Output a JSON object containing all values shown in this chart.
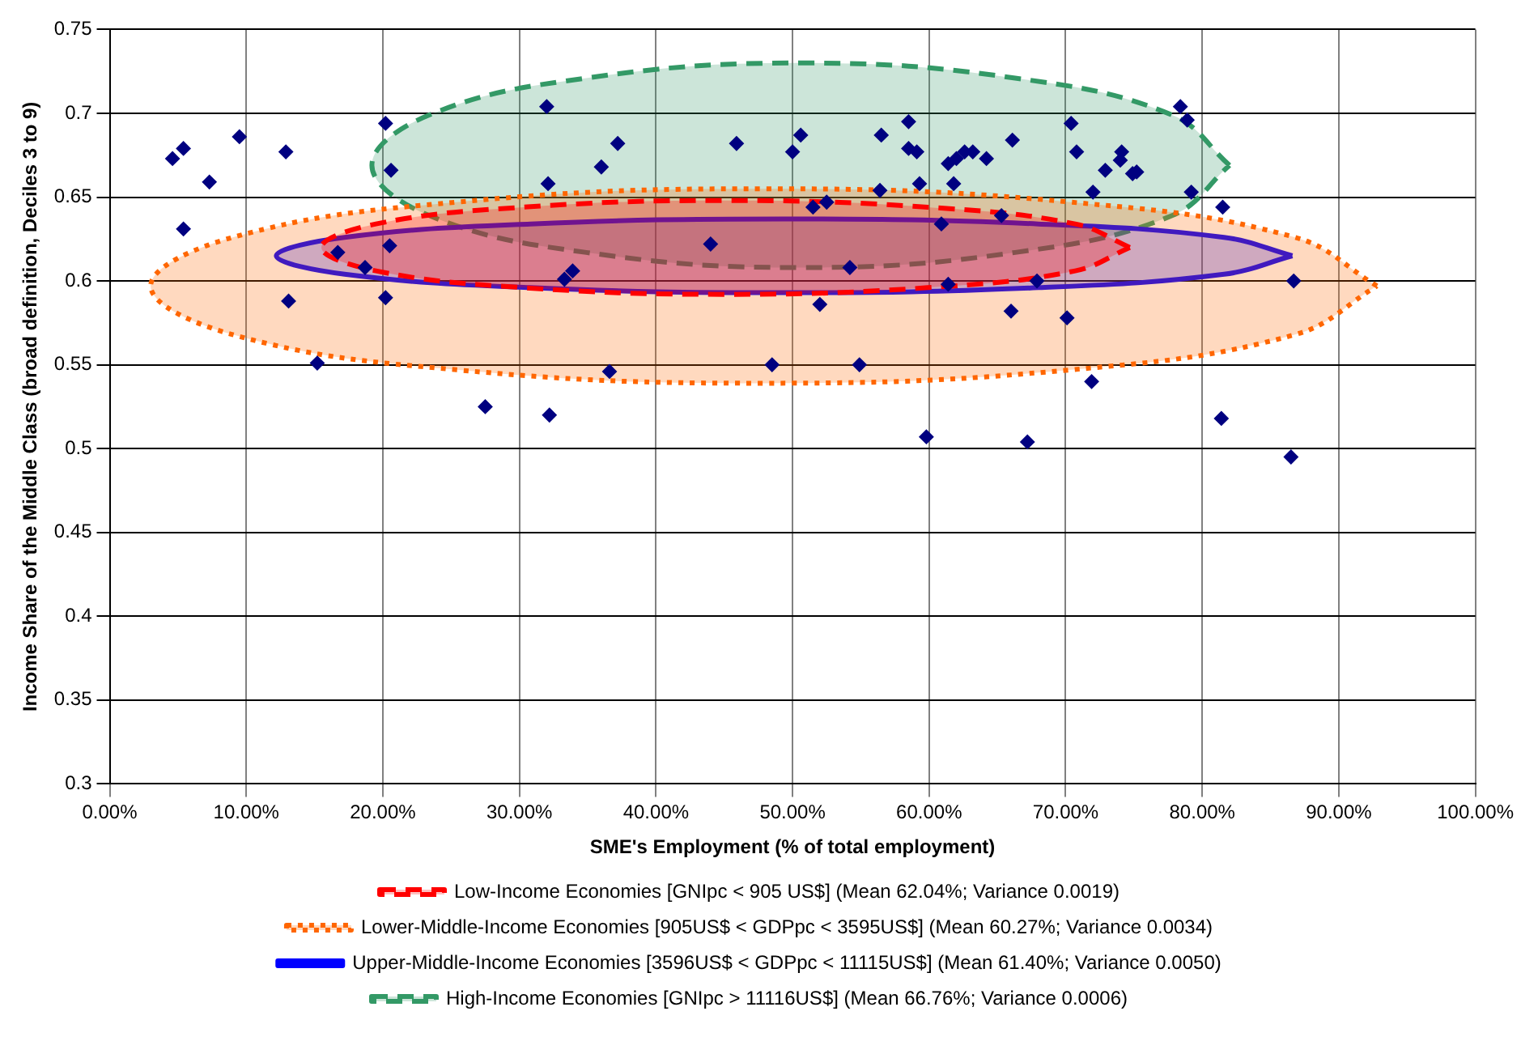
{
  "chart_data": {
    "type": "scatter",
    "xlabel": "SME's Employment (% of total employment)",
    "ylabel": "Income Share of the Middle Class (broad definition, Deciles 3 to 9)",
    "xlim": [
      0,
      100
    ],
    "ylim": [
      0.3,
      0.75
    ],
    "xticks": [
      {
        "value": 0,
        "label": "0.00%"
      },
      {
        "value": 10,
        "label": "10.00%"
      },
      {
        "value": 20,
        "label": "20.00%"
      },
      {
        "value": 30,
        "label": "30.00%"
      },
      {
        "value": 40,
        "label": "40.00%"
      },
      {
        "value": 50,
        "label": "50.00%"
      },
      {
        "value": 60,
        "label": "60.00%"
      },
      {
        "value": 70,
        "label": "70.00%"
      },
      {
        "value": 80,
        "label": "80.00%"
      },
      {
        "value": 90,
        "label": "90.00%"
      },
      {
        "value": 100,
        "label": "100.00%"
      }
    ],
    "yticks": [
      0.3,
      0.35,
      0.4,
      0.45,
      0.5,
      0.55,
      0.6,
      0.65,
      0.7,
      0.75
    ],
    "grid": true,
    "legend": "bottom",
    "marker": "diamond",
    "series": [
      {
        "color": "#000080",
        "x": [
          4.6,
          5.4,
          9.5,
          7.3,
          12.9,
          5.4,
          20.2,
          20.6,
          32.0,
          32.1,
          16.7,
          18.7,
          20.5,
          13.1,
          20.2,
          15.2,
          27.5,
          32.2,
          33.3,
          33.9,
          37.2,
          36.0,
          36.6,
          44.0,
          45.9,
          48.5,
          50.0,
          50.6,
          51.5,
          52.5,
          52.0,
          54.2,
          54.9,
          56.5,
          56.4,
          58.5,
          58.5,
          59.1,
          59.3,
          59.8,
          60.9,
          61.4,
          62.0,
          62.6,
          63.2,
          61.4,
          61.8,
          64.2,
          65.3,
          66.1,
          66.0,
          67.2,
          67.9,
          70.1,
          70.4,
          70.8,
          71.9,
          72.0,
          72.9,
          74.0,
          74.1,
          74.9,
          75.2,
          78.4,
          78.9,
          79.2,
          81.5,
          81.4,
          86.7,
          86.5
        ],
        "values": [
          0.673,
          0.679,
          0.686,
          0.659,
          0.677,
          0.631,
          0.694,
          0.666,
          0.704,
          0.658,
          0.617,
          0.608,
          0.621,
          0.588,
          0.59,
          0.551,
          0.525,
          0.52,
          0.601,
          0.606,
          0.682,
          0.668,
          0.546,
          0.622,
          0.682,
          0.55,
          0.677,
          0.687,
          0.644,
          0.647,
          0.586,
          0.608,
          0.55,
          0.687,
          0.654,
          0.695,
          0.679,
          0.677,
          0.658,
          0.507,
          0.634,
          0.67,
          0.673,
          0.677,
          0.677,
          0.598,
          0.658,
          0.673,
          0.639,
          0.684,
          0.582,
          0.504,
          0.6,
          0.578,
          0.694,
          0.677,
          0.54,
          0.653,
          0.666,
          0.672,
          0.677,
          0.664,
          0.665,
          0.704,
          0.696,
          0.653,
          0.644,
          0.518,
          0.6,
          0.495
        ]
      },
      {
        "type": "area",
        "name": "Low-Income Economies [GNIpc < 905 US$] (Mean 62.04%; Variance 0.0019)",
        "color": "#ff0000",
        "line_style": "dashed",
        "marker": "none",
        "x": [
          74.7,
          70.7,
          59.9,
          45.1,
          30.3,
          19.5,
          15.5,
          19.5,
          30.3,
          45.1,
          59.9,
          70.7,
          74.7
        ],
        "values": [
          0.62,
          0.634,
          0.644,
          0.648,
          0.644,
          0.634,
          0.62,
          0.606,
          0.596,
          0.592,
          0.596,
          0.606,
          0.62
        ]
      },
      {
        "type": "area",
        "name": "Lower-Middle-Income Economies [905US$ < GDPpc < 3595US$] (Mean 60.27%; Variance 0.0034)",
        "color": "#ff6600",
        "line_style": "dotted",
        "marker": "none",
        "x": [
          92.8,
          86.8,
          70.4,
          47.9,
          25.4,
          9.0,
          3.0,
          9.0,
          25.4,
          47.9,
          70.4,
          86.8,
          92.8
        ],
        "values": [
          0.597,
          0.626,
          0.647,
          0.655,
          0.647,
          0.626,
          0.597,
          0.568,
          0.547,
          0.539,
          0.547,
          0.568,
          0.597
        ]
      },
      {
        "type": "area",
        "name": "Upper-Middle-Income Economies [3596US$ < GDPpc < 11115US$] (Mean 61.40%; Variance 0.0050)",
        "color": "#0000ff",
        "line_style": "solid",
        "marker": "none",
        "x": [
          86.6,
          81.6,
          68.0,
          49.4,
          30.8,
          17.2,
          12.2,
          17.2,
          30.8,
          49.4,
          68.0,
          81.6,
          86.6
        ],
        "values": [
          0.615,
          0.626,
          0.634,
          0.637,
          0.634,
          0.626,
          0.615,
          0.604,
          0.596,
          0.593,
          0.596,
          0.604,
          0.615
        ]
      },
      {
        "type": "area",
        "name": "High-Income Economies [GNIpc > 11116US$] (Mean 66.76%; Variance 0.0006)",
        "color": "#339966",
        "line_style": "dashed",
        "marker": "none",
        "x": [
          82.0,
          77.8,
          66.3,
          50.6,
          34.9,
          23.4,
          19.2,
          23.4,
          34.9,
          50.6,
          66.3,
          77.8,
          82.0
        ],
        "values": [
          0.669,
          0.699,
          0.721,
          0.73,
          0.721,
          0.699,
          0.669,
          0.639,
          0.617,
          0.608,
          0.617,
          0.639,
          0.669
        ]
      }
    ]
  }
}
